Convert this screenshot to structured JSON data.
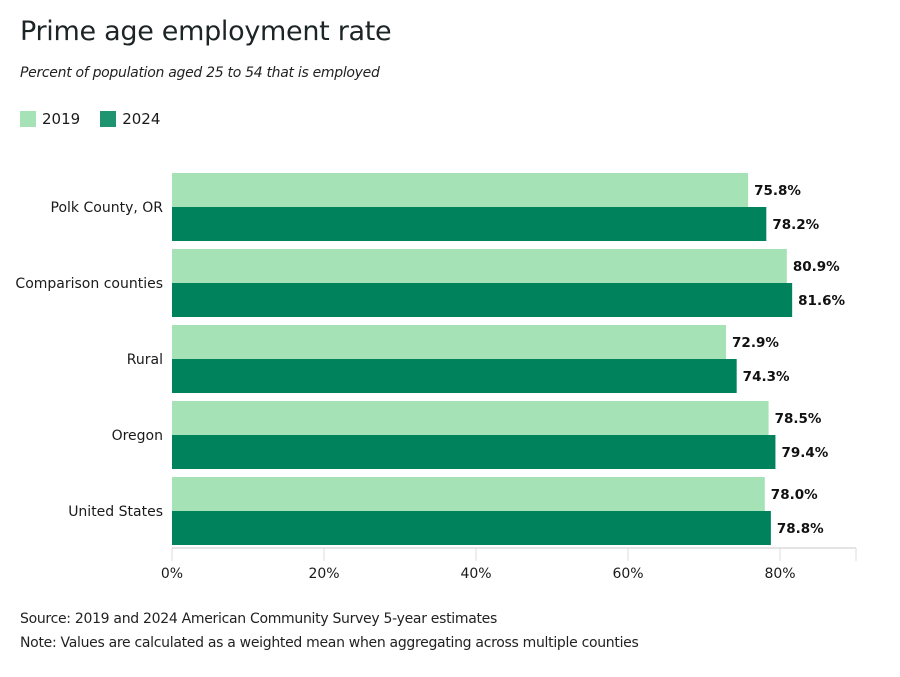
{
  "chart_data": {
    "type": "bar",
    "orientation": "horizontal",
    "title": "Prime age employment rate",
    "subtitle": "Percent of population aged 25 to 54 that is employed",
    "categories": [
      "Polk County, OR",
      "Comparison counties",
      "Rural",
      "Oregon",
      "United States"
    ],
    "series": [
      {
        "name": "2019",
        "color": "#a5e3b6",
        "values": [
          75.8,
          80.9,
          72.9,
          78.5,
          78.0
        ],
        "labels": [
          "75.8%",
          "80.9%",
          "72.9%",
          "78.5%",
          "78.0%"
        ]
      },
      {
        "name": "2024",
        "color": "#00825c",
        "values": [
          78.2,
          81.6,
          74.3,
          79.4,
          78.8
        ],
        "labels": [
          "78.2%",
          "81.6%",
          "74.3%",
          "79.4%",
          "78.8%"
        ]
      }
    ],
    "xlabel": "",
    "ylabel": "",
    "xlim": [
      0,
      90
    ],
    "xticks": [
      0,
      20,
      40,
      60,
      80
    ],
    "xtick_labels": [
      "0%",
      "20%",
      "40%",
      "60%",
      "80%"
    ],
    "grid": false,
    "legend": "top-left",
    "source": "Source: 2019 and 2024 American Community Survey 5-year estimates",
    "note": "Note: Values are calculated as a weighted mean when aggregating across multiple counties"
  },
  "legend": {
    "items": [
      {
        "label": "2019",
        "color": "#a5e3b6"
      },
      {
        "label": "2024",
        "color": "#1e9470"
      }
    ]
  }
}
